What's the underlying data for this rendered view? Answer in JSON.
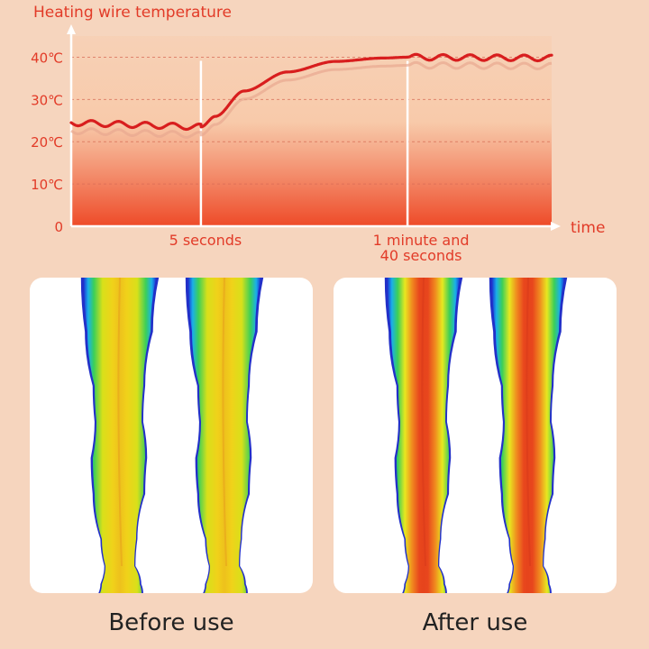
{
  "chart_data": {
    "type": "line",
    "title": "Heating wire temperature",
    "xlabel": "time",
    "ylabel": "",
    "y_ticks": [
      {
        "value": 0,
        "label": "0"
      },
      {
        "value": 10,
        "label": "10℃"
      },
      {
        "value": 20,
        "label": "20℃"
      },
      {
        "value": 30,
        "label": "30℃"
      },
      {
        "value": 40,
        "label": "40℃"
      }
    ],
    "ylim": [
      0,
      45
    ],
    "x_markers": [
      {
        "label": "5 seconds",
        "position": 0.27
      },
      {
        "label": "1 minute and\n40 seconds",
        "position": 0.7
      }
    ],
    "series": [
      {
        "color": "#d81e1e",
        "points": [
          {
            "t": 0.0,
            "y": 24.5,
            "wavy": true
          },
          {
            "t": 0.27,
            "y": 23.5,
            "wavy": false
          },
          {
            "t": 0.3,
            "y": 26.0,
            "wavy": false
          },
          {
            "t": 0.36,
            "y": 32.0,
            "wavy": false
          },
          {
            "t": 0.45,
            "y": 36.5,
            "wavy": false
          },
          {
            "t": 0.55,
            "y": 39.0,
            "wavy": false
          },
          {
            "t": 0.65,
            "y": 39.8,
            "wavy": false
          },
          {
            "t": 0.7,
            "y": 40.0,
            "wavy": true
          },
          {
            "t": 1.0,
            "y": 39.8,
            "wavy": true
          }
        ]
      }
    ],
    "grid": "dashed horizontal",
    "colors": {
      "axis": "#ffffff",
      "labels": "#e23b28",
      "area_top": "#f8c9a8",
      "area_bottom": "#ee4a28"
    }
  },
  "thermal_images": [
    {
      "caption": "Before use",
      "state": "before"
    },
    {
      "caption": "After use",
      "state": "after"
    }
  ]
}
